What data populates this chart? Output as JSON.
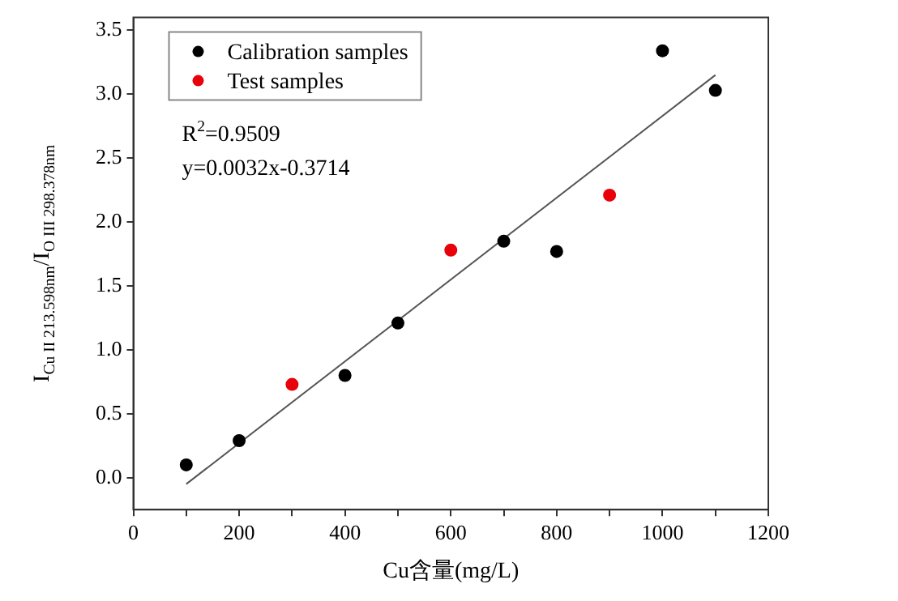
{
  "chart_data": {
    "type": "scatter",
    "xlabel": "Cu含量(mg/L)",
    "ylabel": "I$_{Cu II 213.598nm}$/I$_{O III 298.378nm}$",
    "xlim": [
      0,
      1200
    ],
    "ylim": [
      -0.25,
      3.6
    ],
    "xticks": [
      0,
      {
        "value": 100,
        "label": null
      },
      200,
      {
        "value": 300,
        "label": null
      },
      400,
      {
        "value": 500,
        "label": null
      },
      600,
      {
        "value": 700,
        "label": null
      },
      800,
      {
        "value": 900,
        "label": null
      },
      1000,
      {
        "value": 1100,
        "label": null
      },
      1200
    ],
    "yticks": [
      {
        "value": 0,
        "label": "0.0"
      },
      {
        "value": 0.5,
        "label": "0.5"
      },
      {
        "value": 1,
        "label": "1.0"
      },
      {
        "value": 1.5,
        "label": "1.5"
      },
      {
        "value": 2,
        "label": "2.0"
      },
      {
        "value": 2.5,
        "label": "2.5"
      },
      {
        "value": 3,
        "label": "3.0"
      },
      {
        "value": 3.5,
        "label": "3.5"
      }
    ],
    "grid": false,
    "legend": "top left",
    "marker": "circle",
    "annotations": [
      "R$^{2}$=0.9509",
      "y=0.0032x-0.3714"
    ],
    "series": [
      {
        "name": "Calibration samples",
        "color": "#000000",
        "x": [
          100,
          200,
          400,
          500,
          700,
          800,
          1000,
          1100
        ],
        "values": [
          0.1,
          0.29,
          0.8,
          1.21,
          1.85,
          1.77,
          3.34,
          3.03
        ]
      },
      {
        "name": "Test samples",
        "color": "#e8000b",
        "x": [
          300,
          600,
          900
        ],
        "values": [
          0.73,
          1.78,
          2.21
        ]
      },
      {
        "type": "line",
        "marker": "none",
        "color": "#555555",
        "x": [
          100,
          1100
        ],
        "values": [
          -0.05,
          3.15
        ]
      }
    ]
  }
}
